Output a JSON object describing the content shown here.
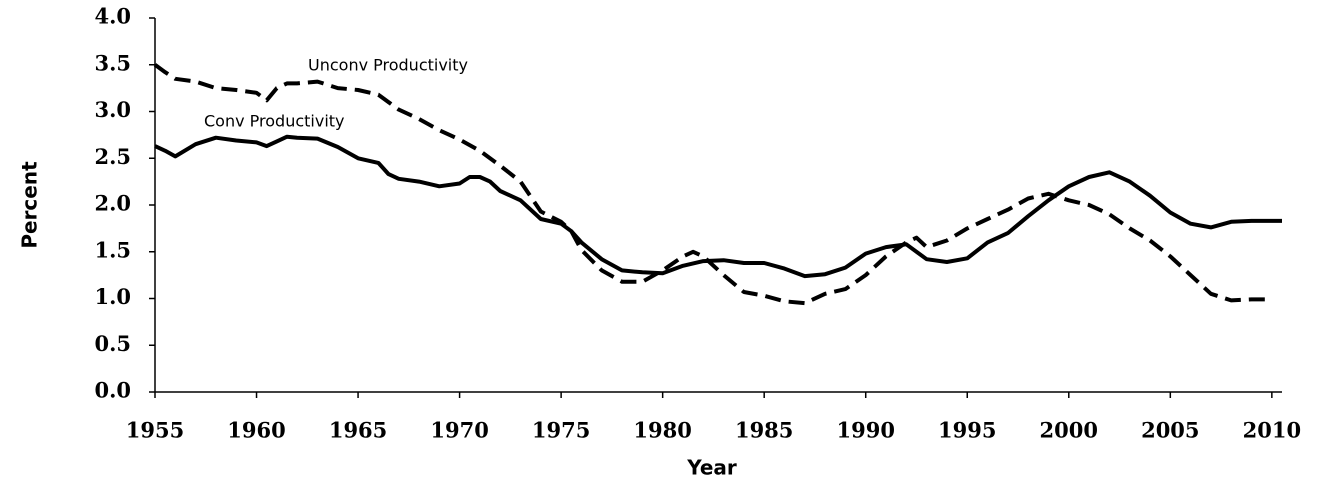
{
  "chart_data": {
    "type": "line",
    "x_label": "Year",
    "y_label": "Percent",
    "xlim": [
      1955,
      2010.5
    ],
    "xticks": [
      1955,
      1960,
      1965,
      1970,
      1975,
      1980,
      1985,
      1990,
      1995,
      2000,
      2005,
      2010
    ],
    "ylim": [
      0,
      4
    ],
    "yticks": [
      {
        "value": 0,
        "label": "0.0"
      },
      0.5,
      {
        "value": 1,
        "label": "1.0"
      },
      1.5,
      {
        "value": 2,
        "label": "2.0"
      },
      2.5,
      {
        "value": 3,
        "label": "3.0"
      },
      3.5,
      {
        "value": 4,
        "label": "4.0"
      }
    ],
    "series": [
      {
        "name": "Unconv Productivity",
        "color": "#000000",
        "dash": true,
        "x": [
          1955,
          1955.5,
          1956,
          1957,
          1958,
          1959,
          1960,
          1960.5,
          1961,
          1961.5,
          1962,
          1963,
          1964,
          1965,
          1966,
          1966.5,
          1967,
          1968,
          1969,
          1970,
          1971,
          1972,
          1973,
          1974,
          1975,
          1975.5,
          1976,
          1977,
          1978,
          1979,
          1980,
          1981,
          1981.5,
          1982,
          1983,
          1984,
          1985,
          1986,
          1987,
          1988,
          1989,
          1990,
          1991,
          1992,
          1992.5,
          1993,
          1994,
          1995,
          1996,
          1997,
          1998,
          1999,
          2000,
          2001,
          2002,
          2003,
          2004,
          2005,
          2006,
          2007,
          2008,
          2009,
          2010
        ],
        "values": [
          3.5,
          3.42,
          3.35,
          3.32,
          3.25,
          3.23,
          3.2,
          3.12,
          3.25,
          3.3,
          3.3,
          3.32,
          3.25,
          3.23,
          3.18,
          3.1,
          3.02,
          2.92,
          2.8,
          2.7,
          2.58,
          2.42,
          2.25,
          1.93,
          1.82,
          1.72,
          1.52,
          1.3,
          1.18,
          1.18,
          1.3,
          1.45,
          1.5,
          1.45,
          1.25,
          1.07,
          1.03,
          0.97,
          0.95,
          1.05,
          1.1,
          1.25,
          1.45,
          1.6,
          1.65,
          1.55,
          1.62,
          1.75,
          1.85,
          1.95,
          2.07,
          2.12,
          2.05,
          2.0,
          1.9,
          1.75,
          1.62,
          1.45,
          1.25,
          1.05,
          0.98,
          0.99,
          0.99
        ]
      },
      {
        "name": "Conv Productivity",
        "color": "#000000",
        "dash": false,
        "x": [
          1955,
          1955.5,
          1956,
          1957,
          1958,
          1959,
          1960,
          1960.5,
          1961,
          1961.5,
          1962,
          1963,
          1964,
          1965,
          1966,
          1966.5,
          1967,
          1968,
          1969,
          1970,
          1970.5,
          1971,
          1971.5,
          1972,
          1973,
          1974,
          1975,
          1975.5,
          1976,
          1977,
          1978,
          1979,
          1980,
          1981,
          1982,
          1983,
          1984,
          1985,
          1986,
          1987,
          1988,
          1989,
          1990,
          1991,
          1992,
          1993,
          1994,
          1995,
          1996,
          1997,
          1998,
          1999,
          2000,
          2001,
          2002,
          2003,
          2004,
          2005,
          2006,
          2007,
          2008,
          2009,
          2010,
          2010.5
        ],
        "values": [
          2.63,
          2.58,
          2.52,
          2.65,
          2.72,
          2.69,
          2.67,
          2.63,
          2.68,
          2.73,
          2.72,
          2.71,
          2.62,
          2.5,
          2.45,
          2.33,
          2.28,
          2.25,
          2.2,
          2.23,
          2.3,
          2.3,
          2.25,
          2.15,
          2.05,
          1.85,
          1.8,
          1.72,
          1.6,
          1.42,
          1.3,
          1.28,
          1.27,
          1.35,
          1.4,
          1.41,
          1.38,
          1.38,
          1.32,
          1.24,
          1.26,
          1.33,
          1.48,
          1.55,
          1.58,
          1.42,
          1.39,
          1.43,
          1.6,
          1.7,
          1.88,
          2.05,
          2.2,
          2.3,
          2.35,
          2.25,
          2.1,
          1.92,
          1.8,
          1.76,
          1.82,
          1.83,
          1.83,
          1.83
        ]
      }
    ]
  }
}
